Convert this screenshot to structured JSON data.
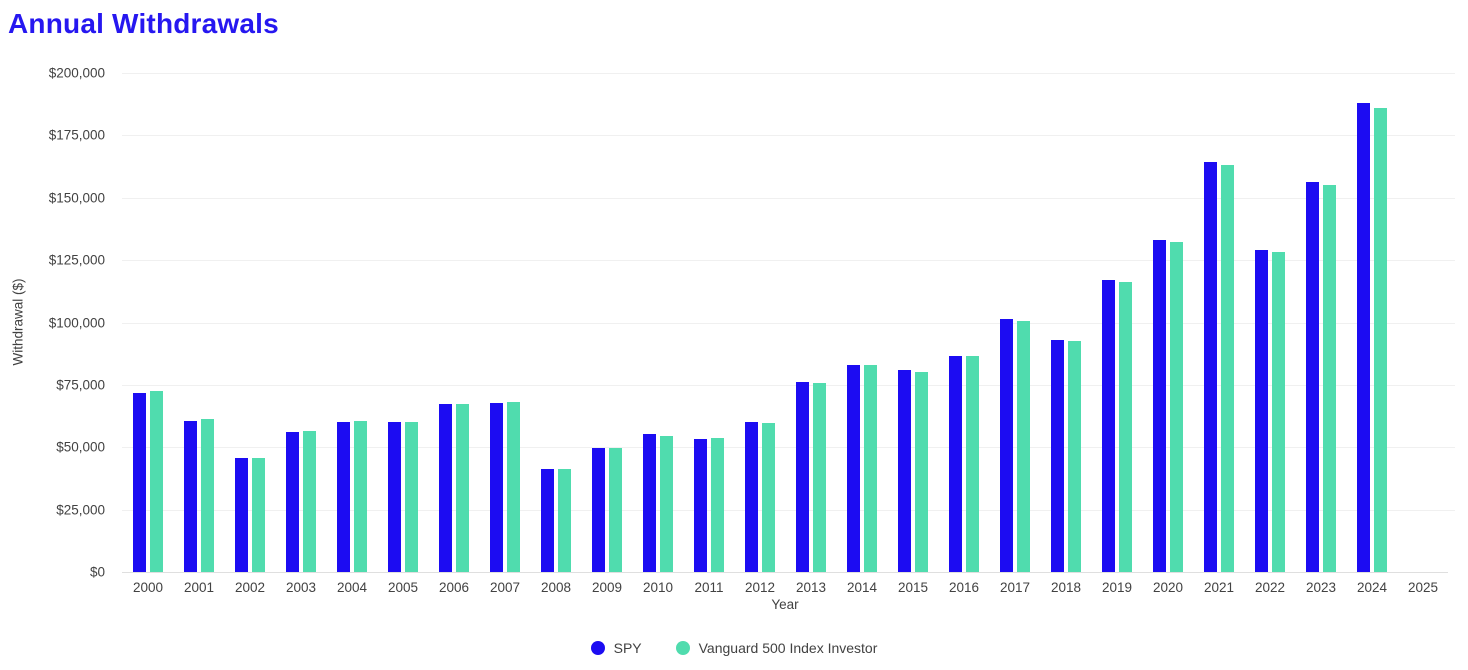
{
  "page": {
    "title": "Annual Withdrawals"
  },
  "colors": {
    "title": "#2617f0",
    "spy_bar": "#1c0cf2",
    "vanguard_bar": "#50dcae",
    "text": "#424242",
    "gridline": "#f0f0f0",
    "axis_line": "#dfdfdf"
  },
  "chart_data": {
    "type": "bar",
    "title": "Annual Withdrawals",
    "xlabel": "Year",
    "ylabel": "Withdrawal ($)",
    "ylim": [
      0,
      200000
    ],
    "grid": true,
    "legend_position": "bottom",
    "y_ticks": [
      {
        "value": 0,
        "label": "$0"
      },
      {
        "value": 25000,
        "label": "$25,000"
      },
      {
        "value": 50000,
        "label": "$50,000"
      },
      {
        "value": 75000,
        "label": "$75,000"
      },
      {
        "value": 100000,
        "label": "$100,000"
      },
      {
        "value": 125000,
        "label": "$125,000"
      },
      {
        "value": 150000,
        "label": "$150,000"
      },
      {
        "value": 175000,
        "label": "$175,000"
      },
      {
        "value": 200000,
        "label": "$200,000"
      }
    ],
    "categories": [
      "2000",
      "2001",
      "2002",
      "2003",
      "2004",
      "2005",
      "2006",
      "2007",
      "2008",
      "2009",
      "2010",
      "2011",
      "2012",
      "2013",
      "2014",
      "2015",
      "2016",
      "2017",
      "2018",
      "2019",
      "2020",
      "2021",
      "2022",
      "2023",
      "2024",
      "2025"
    ],
    "series": [
      {
        "name": "SPY",
        "color": "#1c0cf2",
        "values": [
          71700,
          60700,
          45700,
          56300,
          60200,
          60100,
          67200,
          67800,
          41300,
          49600,
          55200,
          53400,
          60200,
          76300,
          82800,
          80900,
          86700,
          101400,
          93000,
          117000,
          133000,
          164200,
          129200,
          156500,
          187800,
          null
        ]
      },
      {
        "name": "Vanguard 500 Index Investor",
        "color": "#50dcae",
        "values": [
          72400,
          61300,
          45800,
          56400,
          60400,
          60300,
          67400,
          68000,
          41400,
          49800,
          54600,
          53700,
          59700,
          75900,
          83000,
          80300,
          86400,
          100800,
          92400,
          116300,
          132300,
          163200,
          128300,
          155000,
          185900,
          null
        ]
      }
    ]
  }
}
